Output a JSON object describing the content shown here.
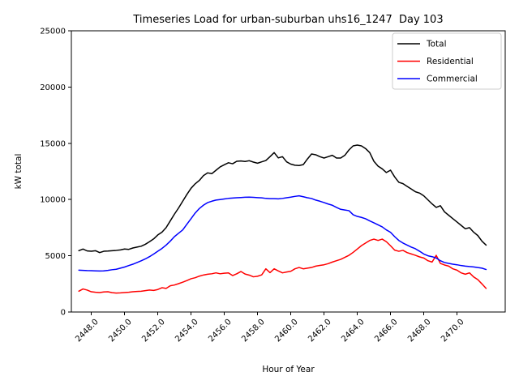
{
  "figure": {
    "title": "Timeseries Load for urban-suburban uhs16_1247  Day 103",
    "xlabel": "Hour of Year",
    "ylabel": "kW total"
  },
  "legend": {
    "position": "upper right",
    "entries": [
      {
        "label": "Total",
        "color": "#000000"
      },
      {
        "label": "Residential",
        "color": "#ff0000"
      },
      {
        "label": "Commercial",
        "color": "#0000ff"
      }
    ]
  },
  "chart_data": {
    "type": "line",
    "title": "Timeseries Load for urban-suburban uhs16_1247  Day 103",
    "xlabel": "Hour of Year",
    "ylabel": "kW total",
    "xlim": [
      2446.8,
      2472.9
    ],
    "ylim": [
      0,
      25000
    ],
    "grid": false,
    "legend_position": "upper right",
    "x_tick_values": [
      2448,
      2450,
      2452,
      2454,
      2456,
      2458,
      2460,
      2462,
      2464,
      2466,
      2468,
      2470
    ],
    "x_tick_labels": [
      "2448.0",
      "2450.0",
      "2452.0",
      "2454.0",
      "2456.0",
      "2458.0",
      "2460.0",
      "2462.0",
      "2464.0",
      "2466.0",
      "2468.0",
      "2470.0"
    ],
    "y_tick_values": [
      0,
      5000,
      10000,
      15000,
      20000,
      25000
    ],
    "y_tick_labels": [
      "0",
      "5000",
      "10000",
      "15000",
      "20000",
      "25000"
    ],
    "x_start": 2447.25,
    "x_step": 0.25,
    "n_points": 99,
    "series": [
      {
        "name": "Total",
        "color": "#000000",
        "values": [
          5450,
          5600,
          5430,
          5400,
          5450,
          5280,
          5400,
          5420,
          5450,
          5480,
          5520,
          5600,
          5570,
          5690,
          5770,
          5850,
          6020,
          6250,
          6500,
          6850,
          7100,
          7500,
          8100,
          8700,
          9250,
          9850,
          10450,
          11000,
          11400,
          11700,
          12130,
          12370,
          12300,
          12600,
          12900,
          13090,
          13270,
          13180,
          13400,
          13430,
          13380,
          13450,
          13330,
          13230,
          13350,
          13470,
          13810,
          14170,
          13700,
          13810,
          13350,
          13150,
          13050,
          13020,
          13100,
          13600,
          14050,
          13980,
          13810,
          13690,
          13810,
          13930,
          13690,
          13690,
          13930,
          14410,
          14770,
          14840,
          14770,
          14530,
          14170,
          13400,
          12970,
          12730,
          12400,
          12610,
          12010,
          11530,
          11410,
          11170,
          10930,
          10690,
          10570,
          10330,
          9970,
          9610,
          9300,
          9450,
          8900,
          8600,
          8300,
          8000,
          7700,
          7400,
          7500,
          7100,
          6800,
          6300,
          5950
        ]
      },
      {
        "name": "Residential",
        "color": "#ff0000",
        "values": [
          1850,
          2050,
          1950,
          1800,
          1760,
          1730,
          1780,
          1800,
          1720,
          1680,
          1700,
          1730,
          1760,
          1800,
          1830,
          1850,
          1900,
          1950,
          1920,
          2000,
          2160,
          2100,
          2330,
          2400,
          2520,
          2650,
          2800,
          2960,
          3050,
          3190,
          3290,
          3360,
          3400,
          3480,
          3400,
          3450,
          3480,
          3240,
          3400,
          3600,
          3380,
          3280,
          3130,
          3180,
          3300,
          3840,
          3500,
          3840,
          3650,
          3480,
          3560,
          3620,
          3840,
          3960,
          3840,
          3900,
          3960,
          4080,
          4140,
          4200,
          4300,
          4440,
          4560,
          4680,
          4860,
          5040,
          5300,
          5600,
          5900,
          6130,
          6360,
          6480,
          6360,
          6480,
          6250,
          5890,
          5500,
          5400,
          5480,
          5280,
          5160,
          5040,
          4900,
          4800,
          4560,
          4440,
          5040,
          4320,
          4180,
          4080,
          3840,
          3720,
          3480,
          3360,
          3480,
          3120,
          2880,
          2500,
          2100
        ]
      },
      {
        "name": "Commercial",
        "color": "#0000ff",
        "values": [
          3720,
          3700,
          3680,
          3670,
          3660,
          3650,
          3660,
          3700,
          3760,
          3800,
          3900,
          4000,
          4130,
          4250,
          4400,
          4550,
          4720,
          4920,
          5150,
          5400,
          5650,
          5950,
          6300,
          6700,
          7000,
          7300,
          7800,
          8300,
          8800,
          9200,
          9500,
          9730,
          9850,
          9950,
          10000,
          10050,
          10100,
          10130,
          10160,
          10180,
          10200,
          10210,
          10190,
          10170,
          10150,
          10100,
          10080,
          10080,
          10060,
          10100,
          10160,
          10210,
          10280,
          10330,
          10250,
          10160,
          10090,
          9950,
          9850,
          9730,
          9600,
          9490,
          9300,
          9130,
          9070,
          9010,
          8650,
          8500,
          8410,
          8290,
          8100,
          7930,
          7750,
          7570,
          7300,
          7090,
          6700,
          6360,
          6130,
          5950,
          5770,
          5620,
          5400,
          5160,
          5000,
          4920,
          4800,
          4560,
          4400,
          4320,
          4250,
          4200,
          4130,
          4080,
          4040,
          4010,
          3950,
          3900,
          3780
        ]
      }
    ]
  }
}
